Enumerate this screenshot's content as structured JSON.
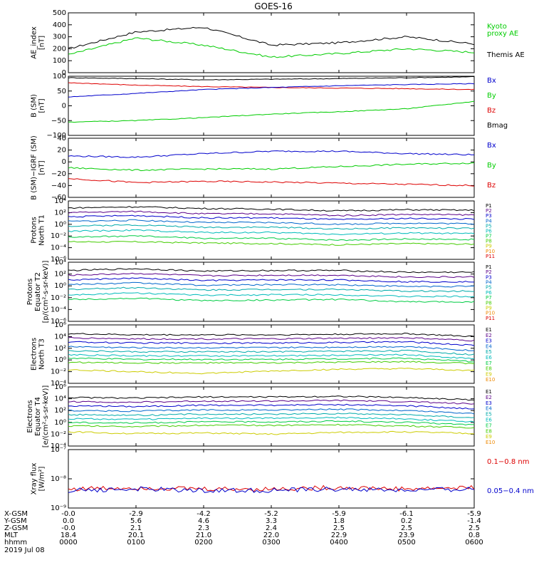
{
  "title": "GOES-16",
  "colors": {
    "black": "#000000",
    "green": "#00cc00",
    "red": "#dd0000",
    "blue": "#0000cc"
  },
  "p_colors": [
    "#000000",
    "#5a0088",
    "#0000cc",
    "#0066cc",
    "#00aaaa",
    "#00bbbb",
    "#00cc44",
    "#44cc00",
    "#cccc00",
    "#ee8800",
    "#dd0000"
  ],
  "e_colors": [
    "#000000",
    "#5a0088",
    "#0000cc",
    "#0066cc",
    "#00aaaa",
    "#00bbbb",
    "#00cc44",
    "#44cc00",
    "#cccc00",
    "#ee8800",
    "#dd0000"
  ],
  "panels": [
    {
      "id": "ae",
      "ylabel_lines": [
        "AE_index",
        "[nT]"
      ],
      "yticks": [
        "500",
        "400",
        "300",
        "200",
        "100",
        "0"
      ],
      "legend": [
        {
          "text": "Kyoto",
          "color": "#00cc00"
        },
        {
          "text": "proxy AE",
          "color": "#00cc00"
        },
        {
          "text": "Themis AE",
          "color": "#000000"
        }
      ]
    },
    {
      "id": "bsm",
      "ylabel_lines": [
        "B (SM)",
        "[nT]"
      ],
      "yticks": [
        "100",
        "50",
        "0",
        "−50",
        "−100"
      ],
      "legend": [
        {
          "text": "Bx",
          "color": "#0000cc"
        },
        {
          "text": "By",
          "color": "#00cc00"
        },
        {
          "text": "Bz",
          "color": "#dd0000"
        },
        {
          "text": "Bmag",
          "color": "#000000"
        }
      ]
    },
    {
      "id": "bigrf",
      "ylabel_lines": [
        "B (SM)−IGRF (SM)",
        "[nT]"
      ],
      "yticks": [
        "40",
        "20",
        "0",
        "−20",
        "−40",
        "−60"
      ],
      "legend": [
        {
          "text": "Bx",
          "color": "#0000cc"
        },
        {
          "text": "By",
          "color": "#00cc00"
        },
        {
          "text": "Bz",
          "color": "#dd0000"
        }
      ]
    },
    {
      "id": "pnt1",
      "ylabel_lines": [
        "Protons",
        "North T1"
      ],
      "yticks": [
        "10⁴",
        "10²",
        "10⁰",
        "10⁻²",
        "10⁻⁴",
        "10⁻⁶"
      ],
      "legend_labels": [
        "P1",
        "P2",
        "P3",
        "P4",
        "P5",
        "P6",
        "P7",
        "P8",
        "P9",
        "P10",
        "P11"
      ]
    },
    {
      "id": "pet2",
      "ylabel_lines": [
        "Protons",
        "Equator T2",
        "[p/(cm²-s-sr-keV)]"
      ],
      "yticks": [
        "10⁴",
        "10²",
        "10⁰",
        "10⁻²",
        "10⁻⁴",
        "10⁻⁶"
      ],
      "legend_labels": [
        "P1",
        "P2",
        "P3",
        "P4",
        "P5",
        "P6",
        "P7",
        "P8",
        "P9",
        "P10",
        "P11"
      ]
    },
    {
      "id": "ent3",
      "ylabel_lines": [
        "Electrons",
        "North T3"
      ],
      "yticks": [
        "10⁶",
        "10⁴",
        "10²",
        "10⁰",
        "10⁻²",
        "10⁻⁴"
      ],
      "legend_labels": [
        "E1",
        "E2",
        "E3",
        "E4",
        "E5",
        "E6",
        "E7",
        "E8",
        "E9",
        "E10"
      ]
    },
    {
      "id": "eet4",
      "ylabel_lines": [
        "Electrons",
        "Equator T4",
        "[e/(cm²-s-sr-keV)]"
      ],
      "yticks": [
        "10⁶",
        "10⁴",
        "10²",
        "10⁰",
        "10⁻²",
        "10⁻⁴"
      ],
      "legend_labels": [
        "E1",
        "E2",
        "E3",
        "E4",
        "E5",
        "E6",
        "E7",
        "E8",
        "E9",
        "E10"
      ]
    },
    {
      "id": "xray",
      "ylabel_lines": [
        "Xray flux",
        "[W/m²]"
      ],
      "yticks": [
        "10⁻⁷",
        "10⁻⁸",
        "10⁻⁹"
      ],
      "legend": [
        {
          "text": "0.1−0.8 nm",
          "color": "#dd0000"
        },
        {
          "text": "0.05−0.4 nm",
          "color": "#0000cc"
        }
      ]
    }
  ],
  "footer": {
    "labels": [
      "X-GSM",
      "Y-GSM",
      "Z-GSM",
      "MLT",
      "hhmm",
      "2019 Jul 08"
    ],
    "columns": [
      [
        "-0.0",
        "0.0",
        "-0.0",
        "18.4",
        "0000"
      ],
      [
        "-2.9",
        "5.6",
        "2.1",
        "20.1",
        "0100"
      ],
      [
        "-4.2",
        "4.6",
        "2.3",
        "21.0",
        "0200"
      ],
      [
        "-5.2",
        "3.3",
        "2.4",
        "22.0",
        "0300"
      ],
      [
        "-5.9",
        "1.8",
        "2.5",
        "22.9",
        "0400"
      ],
      [
        "-6.1",
        "0.2",
        "2.5",
        "23.9",
        "0500"
      ],
      [
        "-5.9",
        "-1.4",
        "2.5",
        "0.8",
        "0600"
      ]
    ]
  },
  "chart_data": [
    {
      "type": "line",
      "title": "GOES-16",
      "ylabel": "AE_index [nT]",
      "ylim": [
        0,
        500
      ],
      "x": [
        "0000",
        "0100",
        "0200",
        "0300",
        "0400",
        "0500",
        "0600"
      ],
      "series": [
        {
          "name": "Themis AE",
          "values": [
            200,
            340,
            380,
            230,
            250,
            300,
            240
          ]
        },
        {
          "name": "Kyoto proxy AE",
          "values": [
            150,
            290,
            230,
            130,
            160,
            200,
            170
          ]
        }
      ]
    },
    {
      "type": "line",
      "ylabel": "B (SM) [nT]",
      "ylim": [
        -100,
        100
      ],
      "x": [
        "0000",
        "0100",
        "0200",
        "0300",
        "0400",
        "0500",
        "0600"
      ],
      "series": [
        {
          "name": "Bmag",
          "values": [
            95,
            92,
            88,
            90,
            92,
            95,
            98
          ]
        },
        {
          "name": "Bz",
          "values": [
            78,
            70,
            65,
            62,
            60,
            58,
            55
          ]
        },
        {
          "name": "Bx",
          "values": [
            30,
            42,
            55,
            62,
            68,
            72,
            75
          ]
        },
        {
          "name": "By",
          "values": [
            -55,
            -50,
            -40,
            -28,
            -20,
            -10,
            15
          ]
        }
      ]
    },
    {
      "type": "line",
      "ylabel": "B (SM)-IGRF (SM) [nT]",
      "ylim": [
        -60,
        40
      ],
      "x": [
        "0000",
        "0100",
        "0200",
        "0300",
        "0400",
        "0500",
        "0600"
      ],
      "series": [
        {
          "name": "Bx",
          "values": [
            10,
            8,
            14,
            18,
            18,
            14,
            12
          ]
        },
        {
          "name": "By",
          "values": [
            -10,
            -14,
            -12,
            -12,
            -8,
            -4,
            -2
          ]
        },
        {
          "name": "Bz",
          "values": [
            -28,
            -35,
            -33,
            -34,
            -36,
            -38,
            -40
          ]
        }
      ]
    },
    {
      "type": "line",
      "ylabel": "Protons North T1",
      "log": true,
      "ylim": [
        -6,
        4
      ],
      "x": [
        "0000",
        "0100",
        "0200",
        "0300",
        "0400",
        "0500",
        "0600"
      ],
      "series": [
        {
          "name": "P1",
          "values": [
            2.8,
            3.0,
            2.7,
            2.6,
            2.3,
            2.5,
            2.4
          ]
        },
        {
          "name": "P2",
          "values": [
            2.0,
            2.2,
            1.8,
            1.8,
            1.5,
            1.7,
            1.6
          ]
        },
        {
          "name": "P3",
          "values": [
            1.3,
            1.5,
            1.1,
            1.1,
            0.8,
            1.0,
            0.9
          ]
        },
        {
          "name": "P4",
          "values": [
            0.5,
            0.7,
            0.3,
            0.3,
            0.0,
            0.2,
            0.1
          ]
        },
        {
          "name": "P5",
          "values": [
            -0.3,
            -0.1,
            -0.5,
            -0.5,
            -0.8,
            -0.6,
            -0.7
          ]
        },
        {
          "name": "P6",
          "values": [
            -1.2,
            -1.0,
            -1.4,
            -1.4,
            -1.7,
            -1.5,
            -1.6
          ]
        },
        {
          "name": "P7",
          "values": [
            -2.2,
            -2.0,
            -2.4,
            -2.4,
            -2.7,
            -2.5,
            -2.6
          ]
        },
        {
          "name": "P8",
          "values": [
            -3.0,
            -3.0,
            -3.2,
            -3.3,
            -3.5,
            -3.3,
            -3.4
          ]
        }
      ]
    },
    {
      "type": "line",
      "ylabel": "Protons Equator T2 [p/(cm2-s-sr-keV)]",
      "log": true,
      "ylim": [
        -6,
        4
      ],
      "x": [
        "0000",
        "0100",
        "0200",
        "0300",
        "0400",
        "0500",
        "0600"
      ],
      "series": [
        {
          "name": "P1",
          "values": [
            2.6,
            2.9,
            2.5,
            2.6,
            2.6,
            2.3,
            2.3
          ]
        },
        {
          "name": "P2",
          "values": [
            1.8,
            2.1,
            1.7,
            1.8,
            1.8,
            1.5,
            1.5
          ]
        },
        {
          "name": "P3",
          "values": [
            1.0,
            1.3,
            0.9,
            1.0,
            1.0,
            0.7,
            0.7
          ]
        },
        {
          "name": "P4",
          "values": [
            0.2,
            0.5,
            0.1,
            0.2,
            0.2,
            -0.1,
            -0.1
          ]
        },
        {
          "name": "P5",
          "values": [
            -0.6,
            -0.3,
            -0.7,
            -0.6,
            -0.6,
            -0.9,
            -0.9
          ]
        },
        {
          "name": "P6",
          "values": [
            -1.5,
            -1.2,
            -1.6,
            -1.5,
            -1.5,
            -1.8,
            -1.8
          ]
        },
        {
          "name": "P7",
          "values": [
            -2.3,
            -2.1,
            -2.5,
            -2.4,
            -2.3,
            -2.7,
            -2.7
          ]
        }
      ]
    },
    {
      "type": "line",
      "ylabel": "Electrons North T3",
      "log": true,
      "ylim": [
        -4,
        6
      ],
      "x": [
        "0000",
        "0100",
        "0200",
        "0300",
        "0400",
        "0500",
        "0600"
      ],
      "series": [
        {
          "name": "E1",
          "values": [
            4.5,
            4.3,
            4.3,
            4.3,
            4.4,
            4.5,
            4.0
          ]
        },
        {
          "name": "E2",
          "values": [
            3.8,
            3.6,
            3.6,
            3.6,
            3.7,
            3.8,
            3.3
          ]
        },
        {
          "name": "E3",
          "values": [
            3.1,
            2.9,
            2.9,
            2.9,
            3.0,
            3.1,
            2.5
          ]
        },
        {
          "name": "E4",
          "values": [
            2.3,
            2.1,
            2.1,
            2.1,
            2.2,
            2.3,
            1.6
          ]
        },
        {
          "name": "E5",
          "values": [
            1.6,
            1.4,
            1.4,
            1.4,
            1.5,
            1.6,
            0.9
          ]
        },
        {
          "name": "E6",
          "values": [
            0.9,
            0.7,
            0.7,
            0.7,
            0.8,
            0.9,
            0.2
          ]
        },
        {
          "name": "E7",
          "values": [
            0.3,
            0.1,
            0.1,
            0.1,
            0.2,
            0.3,
            -0.3
          ]
        },
        {
          "name": "E8",
          "values": [
            -0.4,
            -0.5,
            -0.5,
            -0.5,
            -0.4,
            -0.3,
            -0.6
          ]
        },
        {
          "name": "E9",
          "values": [
            -1.7,
            -2.0,
            -2.3,
            -1.9,
            -1.6,
            -1.5,
            -1.8
          ]
        }
      ]
    },
    {
      "type": "line",
      "ylabel": "Electrons Equator T4 [e/(cm2-s-sr-keV)]",
      "log": true,
      "ylim": [
        -4,
        6
      ],
      "x": [
        "0000",
        "0100",
        "0200",
        "0300",
        "0400",
        "0500",
        "0600"
      ],
      "series": [
        {
          "name": "E1",
          "values": [
            4.2,
            4.1,
            4.3,
            4.3,
            4.4,
            4.2,
            3.8
          ]
        },
        {
          "name": "E2",
          "values": [
            3.5,
            3.4,
            3.6,
            3.6,
            3.7,
            3.5,
            3.1
          ]
        },
        {
          "name": "E3",
          "values": [
            2.8,
            2.7,
            2.9,
            2.9,
            3.0,
            2.8,
            2.3
          ]
        },
        {
          "name": "E4",
          "values": [
            2.0,
            1.9,
            2.1,
            2.1,
            2.2,
            2.0,
            1.5
          ]
        },
        {
          "name": "E5",
          "values": [
            1.3,
            1.2,
            1.4,
            1.4,
            1.5,
            1.3,
            0.8
          ]
        },
        {
          "name": "E6",
          "values": [
            0.6,
            0.5,
            0.7,
            0.7,
            0.8,
            0.6,
            0.1
          ]
        },
        {
          "name": "E7",
          "values": [
            0.0,
            -0.1,
            0.1,
            0.1,
            0.2,
            0.0,
            -0.4
          ]
        },
        {
          "name": "E8",
          "values": [
            -0.6,
            -0.7,
            -0.5,
            -0.5,
            -0.4,
            -0.6,
            -0.9
          ]
        },
        {
          "name": "E9",
          "values": [
            -1.6,
            -1.9,
            -1.8,
            -2.0,
            -1.7,
            -1.6,
            -1.9
          ]
        }
      ]
    },
    {
      "type": "line",
      "ylabel": "Xray flux [W/m2]",
      "log": true,
      "ylim": [
        -9,
        -7
      ],
      "x": [
        "0000",
        "0100",
        "0200",
        "0300",
        "0400",
        "0500",
        "0600"
      ],
      "series": [
        {
          "name": "0.1-0.8 nm",
          "values": [
            -8.35,
            -8.3,
            -8.35,
            -8.35,
            -8.3,
            -8.35,
            -8.3
          ]
        },
        {
          "name": "0.05-0.4 nm",
          "values": [
            -8.4,
            -8.35,
            -8.4,
            -8.4,
            -8.35,
            -8.4,
            -8.35
          ]
        }
      ]
    }
  ]
}
